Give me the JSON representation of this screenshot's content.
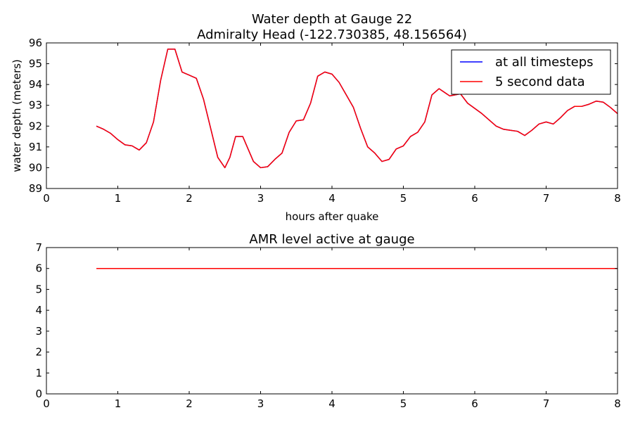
{
  "chart_data": [
    {
      "type": "line",
      "title": "Water depth at Gauge 22",
      "subtitle": "Admiralty Head  (-122.730385, 48.156564)",
      "xlabel": "hours after quake",
      "ylabel": "water depth (meters)",
      "xlim": [
        0,
        8
      ],
      "ylim": [
        89,
        96
      ],
      "x_ticks": [
        0,
        1,
        2,
        3,
        4,
        5,
        6,
        7,
        8
      ],
      "y_ticks": [
        89,
        90,
        91,
        92,
        93,
        94,
        95,
        96
      ],
      "grid": false,
      "legend_position": "top-right",
      "series": [
        {
          "name": "at all timesteps",
          "color": "#0000ff",
          "x": [
            0.7,
            0.8,
            0.9,
            1.0,
            1.1,
            1.2,
            1.3,
            1.4,
            1.5,
            1.6,
            1.7,
            1.8,
            1.9,
            2.0,
            2.1,
            2.2,
            2.3,
            2.4,
            2.5,
            2.57,
            2.65,
            2.75,
            2.8,
            2.9,
            3.0,
            3.1,
            3.2,
            3.3,
            3.4,
            3.5,
            3.6,
            3.7,
            3.8,
            3.9,
            4.0,
            4.1,
            4.2,
            4.3,
            4.4,
            4.5,
            4.6,
            4.7,
            4.8,
            4.9,
            5.0,
            5.1,
            5.2,
            5.3,
            5.4,
            5.5,
            5.65,
            5.8,
            5.9,
            6.0,
            6.1,
            6.2,
            6.3,
            6.4,
            6.5,
            6.6,
            6.7,
            6.8,
            6.9,
            7.0,
            7.1,
            7.2,
            7.3,
            7.4,
            7.5,
            7.6,
            7.7,
            7.8,
            7.9,
            8.0
          ],
          "values": [
            92.0,
            91.85,
            91.65,
            91.35,
            91.1,
            91.05,
            90.85,
            91.2,
            92.2,
            94.2,
            95.7,
            95.7,
            94.6,
            94.45,
            94.3,
            93.3,
            91.9,
            90.5,
            90.0,
            90.5,
            91.5,
            91.5,
            91.1,
            90.3,
            90.0,
            90.05,
            90.4,
            90.7,
            91.7,
            92.25,
            92.3,
            93.1,
            94.4,
            94.6,
            94.5,
            94.1,
            93.5,
            92.9,
            91.9,
            91.0,
            90.7,
            90.3,
            90.4,
            90.9,
            91.05,
            91.5,
            91.7,
            92.2,
            93.5,
            93.8,
            93.45,
            93.55,
            93.1,
            92.85,
            92.6,
            92.3,
            92.0,
            91.85,
            91.8,
            91.75,
            91.55,
            91.8,
            92.1,
            92.2,
            92.1,
            92.4,
            92.75,
            92.95,
            92.95,
            93.05,
            93.2,
            93.15,
            92.9,
            92.6
          ]
        },
        {
          "name": "5 second data",
          "color": "#ff0000",
          "x": [
            0.7,
            0.8,
            0.9,
            1.0,
            1.1,
            1.2,
            1.3,
            1.4,
            1.5,
            1.6,
            1.7,
            1.8,
            1.9,
            2.0,
            2.1,
            2.2,
            2.3,
            2.4,
            2.5,
            2.57,
            2.65,
            2.75,
            2.8,
            2.9,
            3.0,
            3.1,
            3.2,
            3.3,
            3.4,
            3.5,
            3.6,
            3.7,
            3.8,
            3.9,
            4.0,
            4.1,
            4.2,
            4.3,
            4.4,
            4.5,
            4.6,
            4.7,
            4.8,
            4.9,
            5.0,
            5.1,
            5.2,
            5.3,
            5.4,
            5.5,
            5.65,
            5.8,
            5.9,
            6.0,
            6.1,
            6.2,
            6.3,
            6.4,
            6.5,
            6.6,
            6.7,
            6.8,
            6.9,
            7.0,
            7.1,
            7.2,
            7.3,
            7.4,
            7.5,
            7.6,
            7.7,
            7.8,
            7.9,
            8.0
          ],
          "values": [
            92.0,
            91.85,
            91.65,
            91.35,
            91.1,
            91.05,
            90.85,
            91.2,
            92.2,
            94.2,
            95.7,
            95.7,
            94.6,
            94.45,
            94.3,
            93.3,
            91.9,
            90.5,
            90.0,
            90.5,
            91.5,
            91.5,
            91.1,
            90.3,
            90.0,
            90.05,
            90.4,
            90.7,
            91.7,
            92.25,
            92.3,
            93.1,
            94.4,
            94.6,
            94.5,
            94.1,
            93.5,
            92.9,
            91.9,
            91.0,
            90.7,
            90.3,
            90.4,
            90.9,
            91.05,
            91.5,
            91.7,
            92.2,
            93.5,
            93.8,
            93.45,
            93.55,
            93.1,
            92.85,
            92.6,
            92.3,
            92.0,
            91.85,
            91.8,
            91.75,
            91.55,
            91.8,
            92.1,
            92.2,
            92.1,
            92.4,
            92.75,
            92.95,
            92.95,
            93.05,
            93.2,
            93.15,
            92.9,
            92.6
          ]
        }
      ]
    },
    {
      "type": "line",
      "title": "AMR level active at gauge",
      "xlabel": "",
      "ylabel": "",
      "xlim": [
        0,
        8
      ],
      "ylim": [
        0,
        7
      ],
      "x_ticks": [
        0,
        1,
        2,
        3,
        4,
        5,
        6,
        7,
        8
      ],
      "y_ticks": [
        0,
        1,
        2,
        3,
        4,
        5,
        6,
        7
      ],
      "grid": false,
      "series": [
        {
          "color": "#ff0000",
          "x": [
            0.7,
            8.0
          ],
          "values": [
            6,
            6
          ]
        }
      ]
    }
  ]
}
